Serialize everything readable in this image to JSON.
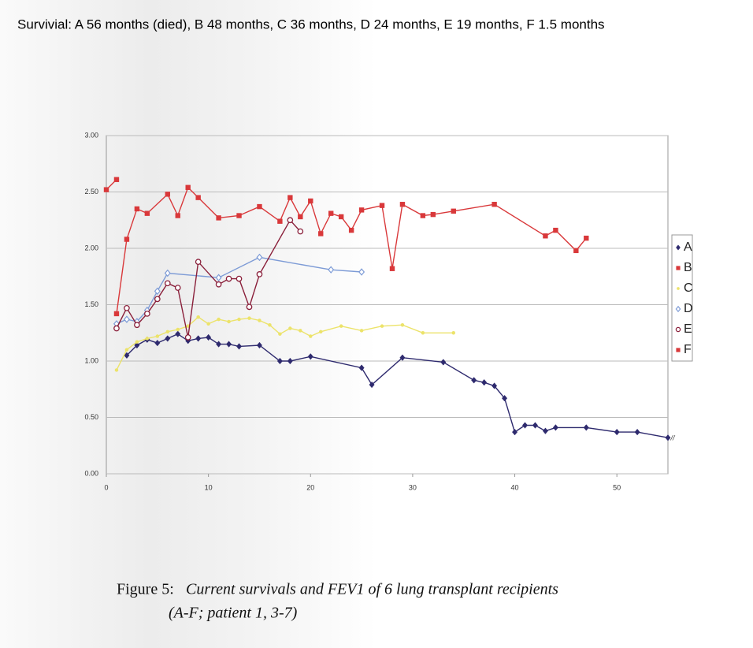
{
  "chart_data": {
    "type": "line",
    "title": "Survivial: A 56 months (died), B 48 months, C 36 months, D 24 months, E 19 months, F 1.5 months",
    "caption_label": "Figure 5:",
    "caption": "Current survivals and FEV1 of 6 lung transplant recipients",
    "caption_line2": "(A-F; patient 1, 3-7)",
    "break_mark": "//",
    "xlim": [
      0,
      55
    ],
    "xticks": [
      0,
      10,
      20,
      30,
      40,
      50
    ],
    "ylim": [
      0,
      3
    ],
    "yticks": [
      {
        "value": 0,
        "label": "0.00"
      },
      {
        "value": 0.5,
        "label": "0.50"
      },
      {
        "value": 1,
        "label": "1.00"
      },
      {
        "value": 1.5,
        "label": "1.50"
      },
      {
        "value": 2,
        "label": "2.00"
      },
      {
        "value": 2.5,
        "label": "2.50"
      },
      {
        "value": 3,
        "label": "3.00"
      }
    ],
    "grid": true,
    "legend": "right",
    "series": [
      {
        "name": "A",
        "color": "#2e2a6e",
        "marker": "diamond",
        "x": [
          2,
          3,
          4,
          5,
          6,
          7,
          8,
          9,
          10,
          11,
          12,
          13,
          15,
          17,
          18,
          20,
          25,
          26,
          29,
          33,
          36,
          37,
          38,
          39,
          40,
          41,
          42,
          43,
          44,
          47,
          50,
          52,
          55
        ],
        "values": [
          1.05,
          1.14,
          1.19,
          1.16,
          1.2,
          1.24,
          1.18,
          1.2,
          1.21,
          1.15,
          1.15,
          1.13,
          1.14,
          1.0,
          1.0,
          1.04,
          0.94,
          0.79,
          1.03,
          0.99,
          0.83,
          0.81,
          0.78,
          0.67,
          0.37,
          0.43,
          0.43,
          0.38,
          0.41,
          0.41,
          0.37,
          0.37,
          0.32
        ]
      },
      {
        "name": "B",
        "color": "#d9383a",
        "marker": "square",
        "x": [
          1,
          2,
          3,
          4,
          6,
          7,
          8,
          9,
          11,
          13,
          15,
          17,
          18,
          19,
          20,
          21,
          22,
          23,
          24,
          25,
          27,
          28,
          29,
          31,
          32,
          34,
          38,
          43,
          44,
          46,
          47
        ],
        "values": [
          1.42,
          2.08,
          2.35,
          2.31,
          2.48,
          2.29,
          2.54,
          2.45,
          2.27,
          2.29,
          2.37,
          2.24,
          2.45,
          2.28,
          2.42,
          2.13,
          2.31,
          2.28,
          2.16,
          2.34,
          2.38,
          1.82,
          2.39,
          2.29,
          2.3,
          2.33,
          2.39,
          2.11,
          2.16,
          1.98,
          2.09
        ]
      },
      {
        "name": "C",
        "color": "#ece36a",
        "marker": "dot",
        "x": [
          1,
          2,
          3,
          4,
          5,
          6,
          7,
          8,
          9,
          10,
          11,
          12,
          13,
          14,
          15,
          16,
          17,
          18,
          19,
          20,
          21,
          23,
          25,
          27,
          29,
          31,
          34
        ],
        "values": [
          0.92,
          1.1,
          1.17,
          1.2,
          1.22,
          1.26,
          1.28,
          1.31,
          1.39,
          1.33,
          1.37,
          1.35,
          1.37,
          1.38,
          1.36,
          1.32,
          1.24,
          1.29,
          1.27,
          1.22,
          1.26,
          1.31,
          1.27,
          1.31,
          1.32,
          1.25,
          1.25
        ]
      },
      {
        "name": "D",
        "color": "#7d9bd6",
        "marker": "open-diamond",
        "x": [
          1,
          2,
          3,
          4,
          5,
          6,
          11,
          15,
          22,
          25
        ],
        "values": [
          1.33,
          1.37,
          1.35,
          1.45,
          1.62,
          1.78,
          1.74,
          1.92,
          1.81,
          1.79
        ]
      },
      {
        "name": "E",
        "color": "#8a1f3a",
        "marker": "open-circle",
        "x": [
          1,
          2,
          3,
          4,
          5,
          6,
          7,
          8,
          9,
          11,
          12,
          13,
          14,
          15,
          18,
          19
        ],
        "values": [
          1.29,
          1.47,
          1.32,
          1.42,
          1.55,
          1.69,
          1.65,
          1.21,
          1.88,
          1.68,
          1.73,
          1.73,
          1.48,
          1.77,
          2.25,
          2.15
        ]
      },
      {
        "name": "F",
        "color": "#d9383a",
        "marker": "square",
        "x": [
          0,
          1
        ],
        "values": [
          2.52,
          2.61
        ]
      }
    ]
  }
}
